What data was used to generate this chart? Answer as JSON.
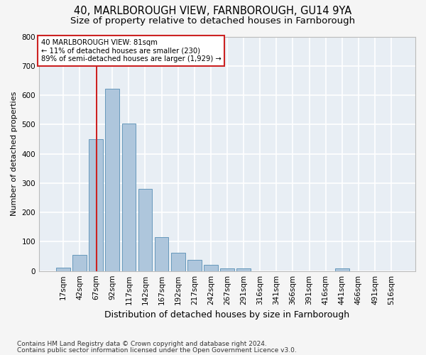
{
  "title": "40, MARLBOROUGH VIEW, FARNBOROUGH, GU14 9YA",
  "subtitle": "Size of property relative to detached houses in Farnborough",
  "xlabel": "Distribution of detached houses by size in Farnborough",
  "ylabel": "Number of detached properties",
  "footnote1": "Contains HM Land Registry data © Crown copyright and database right 2024.",
  "footnote2": "Contains public sector information licensed under the Open Government Licence v3.0.",
  "bins": [
    "17sqm",
    "42sqm",
    "67sqm",
    "92sqm",
    "117sqm",
    "142sqm",
    "167sqm",
    "192sqm",
    "217sqm",
    "242sqm",
    "267sqm",
    "291sqm",
    "316sqm",
    "341sqm",
    "366sqm",
    "391sqm",
    "416sqm",
    "441sqm",
    "466sqm",
    "491sqm",
    "516sqm"
  ],
  "values": [
    12,
    55,
    450,
    622,
    502,
    280,
    115,
    62,
    37,
    22,
    10,
    8,
    0,
    0,
    0,
    0,
    0,
    10,
    0,
    0,
    0
  ],
  "bar_color": "#aec6dc",
  "bar_edge_color": "#6699bb",
  "marker_line_color": "#cc2222",
  "marker_label": "40 MARLBOROUGH VIEW: 81sqm",
  "annotation_line1": "← 11% of detached houses are smaller (230)",
  "annotation_line2": "89% of semi-detached houses are larger (1,929) →",
  "annotation_box_color": "#cc2222",
  "ylim": [
    0,
    800
  ],
  "yticks": [
    0,
    100,
    200,
    300,
    400,
    500,
    600,
    700,
    800
  ],
  "plot_bg_color": "#e8eef4",
  "fig_bg_color": "#f5f5f5",
  "grid_color": "#ffffff",
  "title_fontsize": 10.5,
  "subtitle_fontsize": 9.5,
  "ylabel_fontsize": 8,
  "xlabel_fontsize": 9,
  "tick_fontsize": 7.5,
  "footnote_fontsize": 6.5
}
